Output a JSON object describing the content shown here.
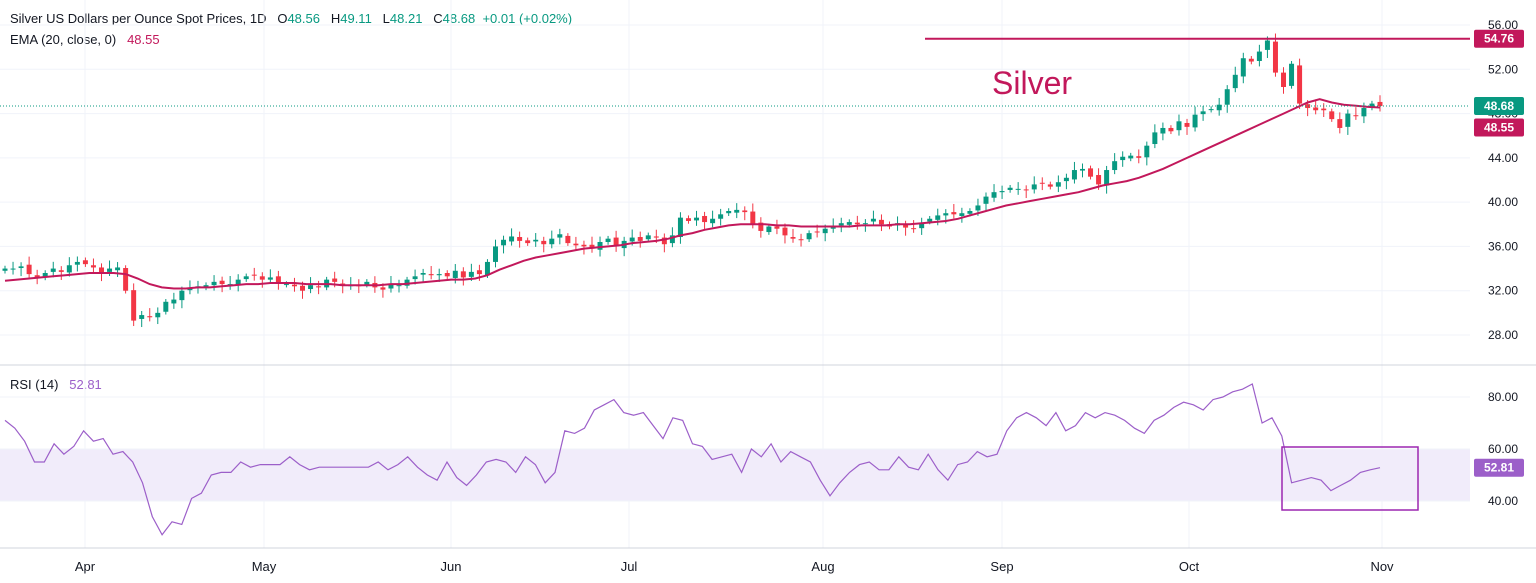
{
  "header": {
    "title": "Silver US Dollars per Ounce Spot Prices, 1D",
    "open_label": "O",
    "open": "48.56",
    "high_label": "H",
    "high": "49.11",
    "low_label": "L",
    "low": "48.21",
    "close_label": "C",
    "close": "48.68",
    "change": "+0.01 (+0.02%)",
    "ema_label": "EMA (20, close, 0)",
    "ema_value": "48.55",
    "rsi_label": "RSI (14)",
    "rsi_value": "52.81"
  },
  "annotation": {
    "text": "Silver"
  },
  "colors": {
    "up": "#089981",
    "down": "#f23645",
    "ema": "#c2185b",
    "rsi": "#9c5fc9",
    "rsi_band": "#f1ecfa",
    "box": "#9c27b0"
  },
  "chart_data": [
    {
      "type": "candlestick",
      "ylim": [
        28,
        56
      ],
      "y_ticks": [
        "56.00",
        "52.00",
        "48.00",
        "44.00",
        "40.00",
        "36.00",
        "32.00",
        "28.00"
      ],
      "x_ticks": [
        "Apr",
        "May",
        "Jun",
        "Jul",
        "Aug",
        "Sep",
        "Oct",
        "Nov"
      ],
      "price_labels": {
        "resistance": "54.76",
        "last": "48.68",
        "ema": "48.55"
      },
      "resistance_level": 54.76,
      "last_price": 48.68,
      "ema_last": 48.55,
      "close_series": [
        34.0,
        34.0,
        34.2,
        33.5,
        33.2,
        33.6,
        34.0,
        33.7,
        34.3,
        34.6,
        34.4,
        34.1,
        33.6,
        34.0,
        34.1,
        32.0,
        29.3,
        29.8,
        29.6,
        30.0,
        31.0,
        31.2,
        32.0,
        32.2,
        32.4,
        32.5,
        32.8,
        32.6,
        32.6,
        33.0,
        33.3,
        33.4,
        33.0,
        33.2,
        32.7,
        32.6,
        32.4,
        32.0,
        32.5,
        32.3,
        33.0,
        32.8,
        32.5,
        32.5,
        32.4,
        32.8,
        32.3,
        32.1,
        32.6,
        32.5,
        33.0,
        33.3,
        33.6,
        33.4,
        33.5,
        33.3,
        33.8,
        33.2,
        33.7,
        33.5,
        34.6,
        36.0,
        36.6,
        36.9,
        36.5,
        36.3,
        36.6,
        36.2,
        36.7,
        37.1,
        36.3,
        36.1,
        36.0,
        35.8,
        36.4,
        36.7,
        36.0,
        36.5,
        36.8,
        36.5,
        37.0,
        36.8,
        36.2,
        37.0,
        38.6,
        38.3,
        38.6,
        38.2,
        38.5,
        38.9,
        39.2,
        39.3,
        39.1,
        38.0,
        37.4,
        37.8,
        37.6,
        37.0,
        36.7,
        36.6,
        37.2,
        37.3,
        37.6,
        37.8,
        38.1,
        38.2,
        38.0,
        38.1,
        38.5,
        38.0,
        37.8,
        38.1,
        37.7,
        37.6,
        38.1,
        38.5,
        38.8,
        39.0,
        38.9,
        39.0,
        39.2,
        39.7,
        40.5,
        40.9,
        41.0,
        41.3,
        41.2,
        41.1,
        41.6,
        41.7,
        41.4,
        41.8,
        42.2,
        42.9,
        43.0,
        42.3,
        41.6,
        42.9,
        43.7,
        44.1,
        44.2,
        44.0,
        45.1,
        46.3,
        46.7,
        46.4,
        47.3,
        46.8,
        47.9,
        48.2,
        48.4,
        48.8,
        50.2,
        51.5,
        53.0,
        52.7,
        53.6,
        54.6,
        51.7,
        50.4,
        52.5,
        48.9,
        48.5,
        48.3,
        48.3,
        47.5,
        46.7,
        48.0,
        47.8,
        48.5,
        48.9,
        48.68
      ],
      "ema_series": [
        32.9,
        33.0,
        33.1,
        33.2,
        33.3,
        33.4,
        33.5,
        33.6,
        33.6,
        33.6,
        33.5,
        33.1,
        32.6,
        32.3,
        32.2,
        32.2,
        32.3,
        32.3,
        32.4,
        32.5,
        32.6,
        32.6,
        32.7,
        32.7,
        32.7,
        32.6,
        32.6,
        32.6,
        32.5,
        32.5,
        32.5,
        32.5,
        32.6,
        32.6,
        32.7,
        32.8,
        32.9,
        33.0,
        33.0,
        33.1,
        33.4,
        33.9,
        34.3,
        34.7,
        35.0,
        35.2,
        35.4,
        35.6,
        35.8,
        35.9,
        36.0,
        36.1,
        36.3,
        36.4,
        36.5,
        36.7,
        37.0,
        37.2,
        37.5,
        37.7,
        37.9,
        38.0,
        38.0,
        38.0,
        37.9,
        37.9,
        37.8,
        37.8,
        37.8,
        37.8,
        37.8,
        37.9,
        37.9,
        37.9,
        38.0,
        38.0,
        38.1,
        38.2,
        38.3,
        38.5,
        38.8,
        39.1,
        39.4,
        39.7,
        39.9,
        40.1,
        40.3,
        40.5,
        40.7,
        40.9,
        41.2,
        41.5,
        41.7,
        41.9,
        42.2,
        42.6,
        43.0,
        43.5,
        44.0,
        44.5,
        45.0,
        45.5,
        46.0,
        46.5,
        47.0,
        47.5,
        48.0,
        48.5,
        49.0,
        49.3,
        49.0,
        48.8,
        48.7,
        48.6,
        48.55
      ]
    },
    {
      "type": "line",
      "name": "RSI (14)",
      "ylim": [
        30,
        90
      ],
      "y_ticks": [
        "80.00",
        "60.00",
        "40.00"
      ],
      "levels": [
        60,
        40
      ],
      "values": [
        71,
        68,
        63,
        55,
        55,
        62,
        58,
        61,
        67,
        63,
        64,
        58,
        59,
        55,
        47,
        34,
        27,
        32,
        31,
        41,
        43,
        50,
        51,
        51,
        55,
        53,
        54,
        54,
        54,
        57,
        54,
        52,
        53,
        53,
        53,
        53,
        53,
        53,
        55,
        52,
        54,
        57,
        53,
        50,
        48,
        55,
        49,
        46,
        50,
        55,
        56,
        55,
        51,
        57,
        54,
        47,
        51,
        67,
        66,
        68,
        75,
        77,
        79,
        74,
        73,
        74,
        69,
        64,
        72,
        71,
        62,
        61,
        56,
        57,
        58,
        51,
        60,
        57,
        62,
        55,
        59,
        57,
        55,
        48,
        42,
        47,
        51,
        54,
        55,
        52,
        52,
        57,
        53,
        52,
        58,
        52,
        48,
        54,
        55,
        59,
        57,
        58,
        67,
        72,
        74,
        72,
        69,
        74,
        67,
        69,
        74,
        72,
        74,
        73,
        71,
        68,
        66,
        71,
        73,
        76,
        78,
        77,
        75,
        79,
        80,
        82,
        83,
        85,
        70,
        72,
        65,
        47,
        48,
        49,
        48,
        44,
        46,
        48,
        51,
        52,
        52.81
      ]
    }
  ]
}
